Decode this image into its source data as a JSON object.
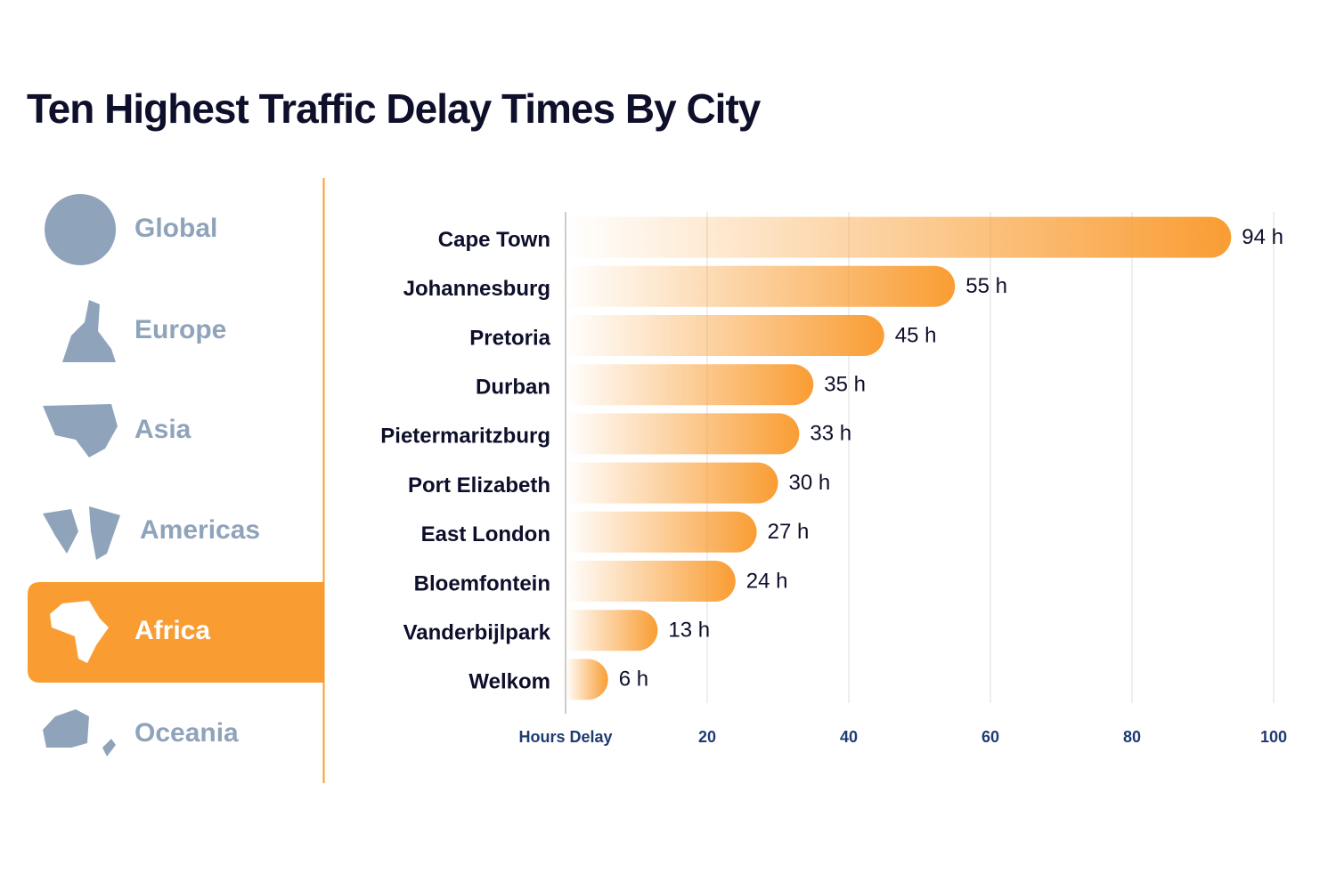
{
  "tabs": [
    "Global",
    "Europe",
    "Asia",
    "Americas",
    "Africa",
    "Oceania"
  ],
  "active_tab": 4,
  "chart_data": {
    "type": "hbar",
    "title": "Ten Highest Traffic Delay Times By City",
    "categories": [
      "Cape Town",
      "Johannesburg",
      "Pretoria",
      "Durban",
      "Pietermaritzburg",
      "Port Elizabeth",
      "East London",
      "Bloemfontein",
      "Vanderbijlpark",
      "Welkom"
    ],
    "values": [
      94,
      55,
      45,
      35,
      33,
      30,
      27,
      24,
      13,
      6
    ],
    "value_labels": [
      "94 h",
      "55 h",
      "45 h",
      "35 h",
      "33 h",
      "30 h",
      "27 h",
      "24 h",
      "13 h",
      "6 h"
    ],
    "color": "#f99d33",
    "xlim": [
      0,
      100
    ],
    "xticks": [
      {
        "value": 0,
        "label": "Hours Delay"
      },
      20,
      40,
      60,
      80,
      100
    ],
    "grid": true
  }
}
